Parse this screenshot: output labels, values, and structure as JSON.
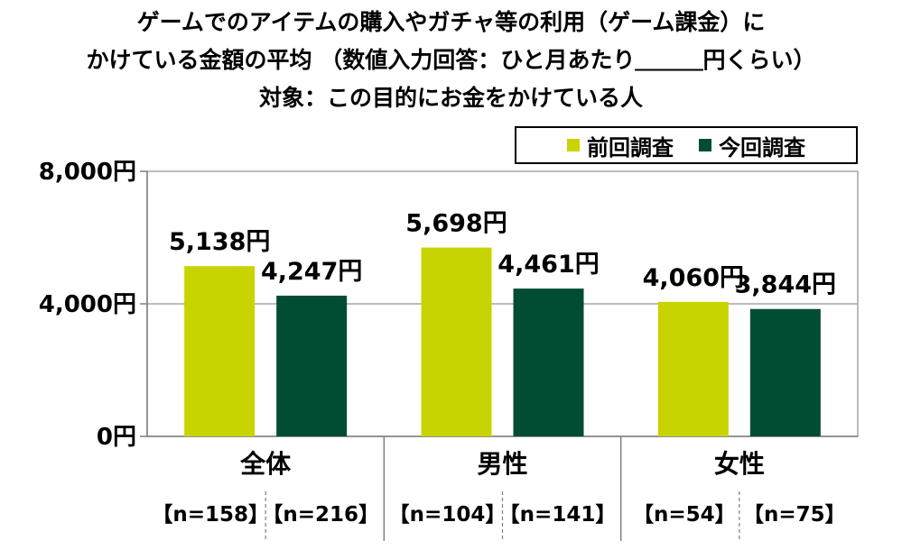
{
  "chart_data": {
    "type": "bar",
    "title_lines": [
      "ゲームでのアイテムの購入やガチャ等の利用（ゲーム課金）に",
      "かけている金額の平均 （数値入力回答：ひと月あたり＿＿＿円くらい）",
      "対象：この目的にお金をかけている人"
    ],
    "categories": [
      "全体",
      "男性",
      "女性"
    ],
    "series": [
      {
        "name": "前回調査",
        "color": "#c8d400",
        "values": [
          5138,
          5698,
          4060
        ],
        "labels": [
          "5,138円",
          "5,698円",
          "4,060円"
        ],
        "n": [
          "【n=158】",
          "【n=104】",
          "【n=54】"
        ]
      },
      {
        "name": "今回調査",
        "color": "#004d33",
        "values": [
          4247,
          4461,
          3844
        ],
        "labels": [
          "4,247円",
          "4,461円",
          "3,844円"
        ],
        "n": [
          "【n=216】",
          "【n=141】",
          "【n=75】"
        ]
      }
    ],
    "ylim": [
      0,
      8000
    ],
    "yticks": [
      0,
      4000,
      8000
    ],
    "ytick_labels": [
      "0円",
      "4,000円",
      "8,000円"
    ],
    "legend_position": "top-right",
    "xlabel": "",
    "ylabel": ""
  }
}
